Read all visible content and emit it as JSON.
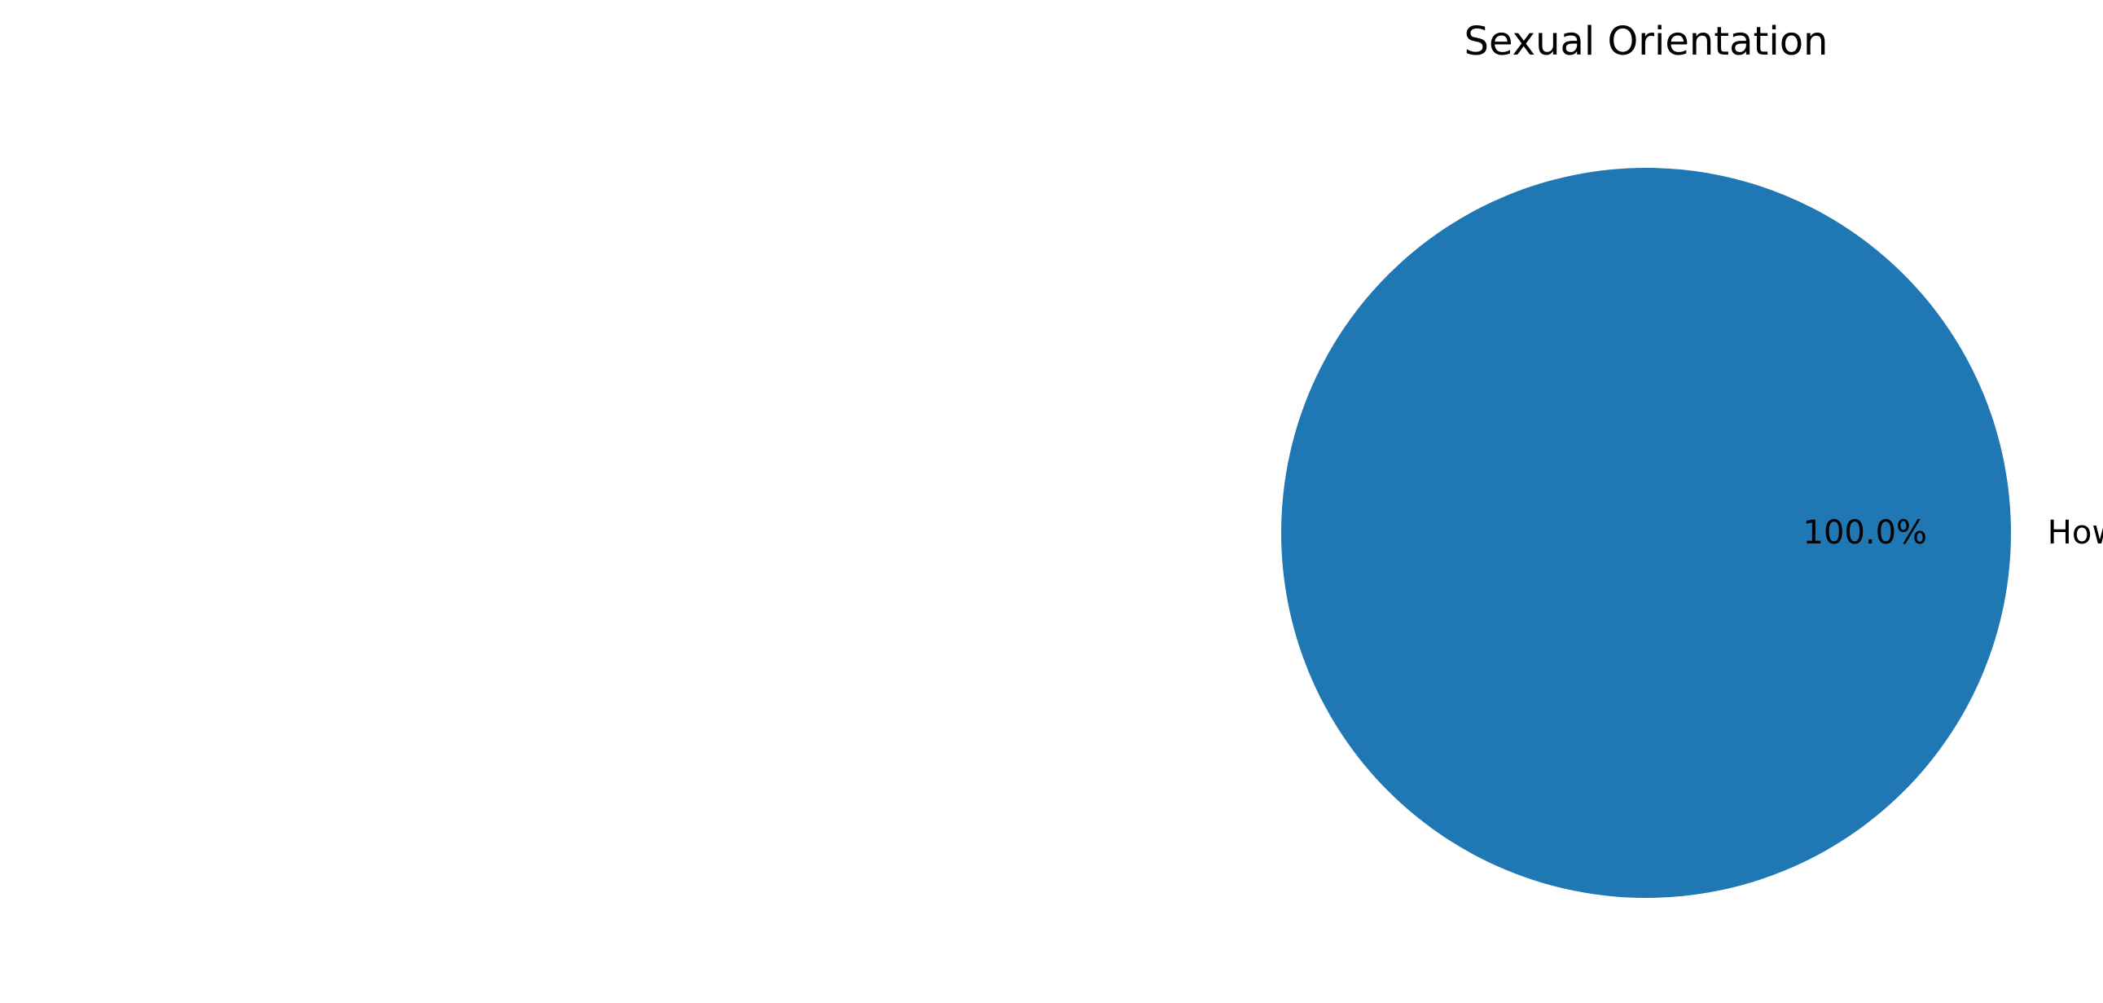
{
  "chart_data": {
    "type": "pie",
    "title": "Sexual Orientation",
    "slices": [
      {
        "label": "How do you describe your sexual orientation?_Heterosexual or straight",
        "value": 100.0,
        "percent_label": "100.0%",
        "color": "#1f77b4"
      }
    ],
    "legend": "none"
  }
}
